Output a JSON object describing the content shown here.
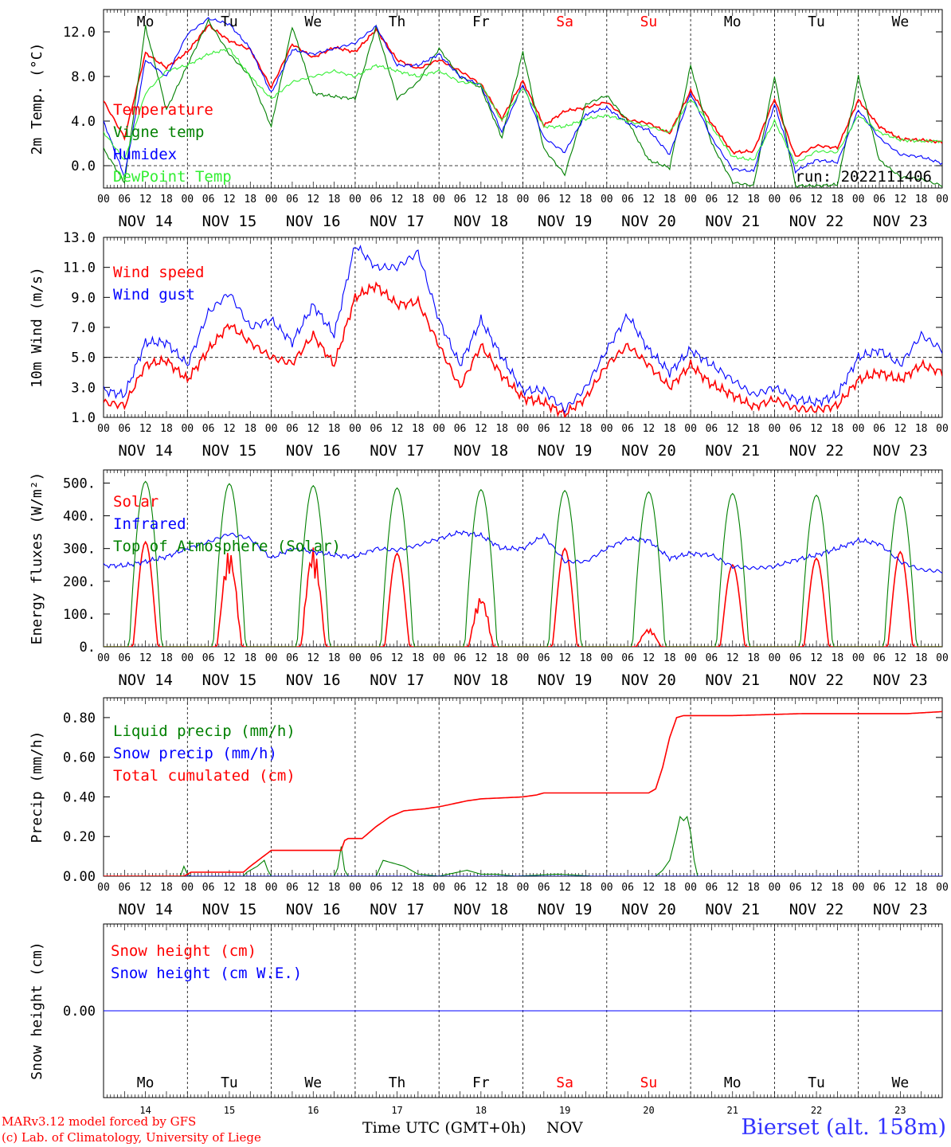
{
  "meta": {
    "run_label": "run: 2022111406",
    "credit_model": "MARv3.12 model forced by GFS",
    "credit_lab": "(c) Lab. of Climatology, University of Liege",
    "station": "Bierset (alt. 158m)",
    "xlabel": "Time UTC (GMT+0h)",
    "month": "NOV",
    "colors": {
      "red": "#ff0000",
      "green": "#008000",
      "blue": "#0000ff",
      "light_green": "#33ee33",
      "purple": "#800080"
    }
  },
  "days": [
    {
      "dow": "Mo",
      "date": "NOV 14",
      "num": "14",
      "weekend": false
    },
    {
      "dow": "Tu",
      "date": "NOV 15",
      "num": "15",
      "weekend": false
    },
    {
      "dow": "We",
      "date": "NOV 16",
      "num": "16",
      "weekend": false
    },
    {
      "dow": "Th",
      "date": "NOV 17",
      "num": "17",
      "weekend": false
    },
    {
      "dow": "Fr",
      "date": "NOV 18",
      "num": "18",
      "weekend": false
    },
    {
      "dow": "Sa",
      "date": "NOV 19",
      "num": "19",
      "weekend": true
    },
    {
      "dow": "Su",
      "date": "NOV 20",
      "num": "20",
      "weekend": true
    },
    {
      "dow": "Mo",
      "date": "NOV 21",
      "num": "21",
      "weekend": false
    },
    {
      "dow": "Tu",
      "date": "NOV 22",
      "num": "22",
      "weekend": false
    },
    {
      "dow": "We",
      "date": "NOV 23",
      "num": "23",
      "weekend": false
    }
  ],
  "hour_ticks": [
    "00",
    "06",
    "12",
    "18"
  ],
  "chart_data": [
    {
      "type": "line",
      "ylabel": "2m Temp. (°C)",
      "ylim": [
        -2.0,
        14.0
      ],
      "yticks": [
        0.0,
        4.0,
        8.0,
        12.0
      ],
      "ytick_labels": [
        "0.0",
        "4.0",
        "8.0",
        "12.0"
      ],
      "ref_line": 0.0,
      "x_unit": "hours since NOV 14 00 UTC",
      "series": [
        {
          "name": "Temperature",
          "color": "#ff0000",
          "x": [
            0,
            6,
            12,
            18,
            24,
            30,
            36,
            42,
            48,
            54,
            60,
            66,
            72,
            78,
            84,
            90,
            96,
            102,
            108,
            114,
            120,
            126,
            132,
            138,
            144,
            150,
            156,
            162,
            168,
            174,
            180,
            186,
            192,
            198,
            204,
            210,
            216,
            222,
            228,
            234,
            240
          ],
          "y": [
            5.8,
            2.5,
            10.1,
            8.8,
            10.2,
            12.6,
            11.2,
            10.4,
            7.0,
            10.9,
            9.7,
            10.6,
            10.2,
            12.2,
            9.5,
            8.7,
            9.5,
            8.5,
            7.3,
            4.2,
            7.6,
            3.6,
            4.9,
            5.2,
            5.7,
            4.1,
            3.8,
            2.9,
            6.7,
            3.8,
            1.2,
            1.3,
            6.0,
            0.8,
            1.8,
            1.6,
            5.9,
            3.5,
            2.4,
            2.3,
            2.1
          ]
        },
        {
          "name": "Vigne temp",
          "color": "#008000",
          "x": [
            0,
            6,
            12,
            18,
            24,
            30,
            36,
            42,
            48,
            54,
            60,
            66,
            72,
            78,
            84,
            90,
            96,
            102,
            108,
            114,
            120,
            126,
            132,
            138,
            144,
            150,
            156,
            162,
            168,
            174,
            180,
            186,
            192,
            198,
            204,
            210,
            216,
            222,
            228,
            234,
            240
          ],
          "y": [
            1.5,
            -1.5,
            12.5,
            5.0,
            9.0,
            13.0,
            10.0,
            8.0,
            3.5,
            12.5,
            6.5,
            6.2,
            6.0,
            12.5,
            6.0,
            7.5,
            10.5,
            8.0,
            7.0,
            2.5,
            10.2,
            1.5,
            -0.8,
            5.5,
            6.3,
            4.0,
            0.5,
            -0.2,
            9.0,
            2.0,
            -1.5,
            -1.8,
            8.0,
            -1.8,
            -1.8,
            -1.7,
            8.0,
            0.5,
            -1.0,
            -1.2,
            -1.8
          ]
        },
        {
          "name": "Humidex",
          "color": "#0000ff",
          "x": [
            0,
            6,
            12,
            18,
            24,
            30,
            36,
            42,
            48,
            54,
            60,
            66,
            72,
            78,
            84,
            90,
            96,
            102,
            108,
            114,
            120,
            126,
            132,
            138,
            144,
            150,
            156,
            162,
            168,
            174,
            180,
            186,
            192,
            198,
            204,
            210,
            216,
            222,
            228,
            234,
            240
          ],
          "y": [
            4.0,
            -1.0,
            9.5,
            8.0,
            11.8,
            13.2,
            12.7,
            10.5,
            6.5,
            10.4,
            10.0,
            10.5,
            11.0,
            12.5,
            9.0,
            9.0,
            10.0,
            8.0,
            7.2,
            3.0,
            7.3,
            2.5,
            1.2,
            4.6,
            5.2,
            3.8,
            3.2,
            1.0,
            6.5,
            2.5,
            -0.3,
            -0.5,
            5.5,
            -0.5,
            0.5,
            0.3,
            5.0,
            2.5,
            1.0,
            0.8,
            0.2
          ]
        },
        {
          "name": "DewPoint Temp",
          "color": "#33ee33",
          "x": [
            0,
            6,
            12,
            18,
            24,
            30,
            36,
            42,
            48,
            54,
            60,
            66,
            72,
            78,
            84,
            90,
            96,
            102,
            108,
            114,
            120,
            126,
            132,
            138,
            144,
            150,
            156,
            162,
            168,
            174,
            180,
            186,
            192,
            198,
            204,
            210,
            216,
            222,
            228,
            234,
            240
          ],
          "y": [
            3.0,
            0.5,
            6.5,
            8.5,
            9.0,
            10.0,
            10.5,
            8.0,
            6.0,
            7.5,
            8.0,
            8.5,
            8.0,
            9.0,
            8.5,
            8.0,
            8.5,
            7.5,
            7.3,
            4.0,
            7.0,
            3.5,
            3.5,
            4.2,
            4.5,
            4.0,
            3.5,
            3.0,
            6.0,
            3.5,
            0.8,
            0.5,
            4.0,
            0.2,
            1.3,
            1.2,
            4.5,
            3.0,
            2.3,
            2.2,
            2.2
          ]
        }
      ]
    },
    {
      "type": "line",
      "ylabel": "10m Wind (m/s)",
      "ylim": [
        1.0,
        13.0
      ],
      "yticks": [
        1.0,
        3.0,
        5.0,
        7.0,
        9.0,
        11.0,
        13.0
      ],
      "ytick_labels": [
        "1.0",
        "3.0",
        "5.0",
        "7.0",
        "9.0",
        "11.0",
        "13.0"
      ],
      "ref_line": 5.0,
      "x_unit": "hours since NOV 14 00 UTC",
      "series": [
        {
          "name": "Wind speed",
          "color": "#ff0000",
          "x": [
            0,
            6,
            12,
            18,
            24,
            30,
            36,
            42,
            48,
            54,
            60,
            66,
            72,
            78,
            84,
            90,
            96,
            102,
            108,
            114,
            120,
            126,
            132,
            138,
            144,
            150,
            156,
            162,
            168,
            174,
            180,
            186,
            192,
            198,
            204,
            210,
            216,
            222,
            228,
            234,
            240
          ],
          "y": [
            2.0,
            1.8,
            4.5,
            4.8,
            3.5,
            5.5,
            7.2,
            6.0,
            5.0,
            4.6,
            6.5,
            4.5,
            9.0,
            9.8,
            8.5,
            8.7,
            5.8,
            3.0,
            5.8,
            3.8,
            2.3,
            2.0,
            1.2,
            2.3,
            4.5,
            5.8,
            4.5,
            3.0,
            4.5,
            3.2,
            2.5,
            1.7,
            2.2,
            1.6,
            1.5,
            1.8,
            3.5,
            4.0,
            3.5,
            4.5,
            4.0
          ]
        },
        {
          "name": "Wind gust",
          "color": "#0000ff",
          "x": [
            0,
            6,
            12,
            18,
            24,
            30,
            36,
            42,
            48,
            54,
            60,
            66,
            72,
            78,
            84,
            90,
            96,
            102,
            108,
            114,
            120,
            126,
            132,
            138,
            144,
            150,
            156,
            162,
            168,
            174,
            180,
            186,
            192,
            198,
            204,
            210,
            216,
            222,
            228,
            234,
            240
          ],
          "y": [
            2.8,
            2.5,
            6.0,
            6.0,
            4.5,
            8.0,
            9.3,
            7.0,
            7.5,
            6.0,
            8.5,
            6.5,
            12.5,
            11.0,
            11.0,
            12.0,
            7.5,
            4.5,
            7.5,
            5.0,
            2.8,
            2.8,
            1.5,
            3.0,
            5.5,
            7.8,
            5.5,
            4.0,
            5.5,
            4.5,
            3.5,
            2.5,
            3.0,
            2.2,
            2.0,
            2.5,
            5.0,
            5.5,
            4.5,
            6.5,
            5.5
          ]
        }
      ]
    },
    {
      "type": "line",
      "ylabel": "Energy fluxes (W/m²)",
      "ylim": [
        0,
        540
      ],
      "yticks": [
        0,
        100,
        200,
        300,
        400,
        500
      ],
      "ytick_labels": [
        "0.",
        "100.",
        "200.",
        "300.",
        "400.",
        "500."
      ],
      "x_unit": "hours since NOV 14 00 UTC",
      "series": [
        {
          "name": "Solar",
          "color": "#ff0000",
          "daily_peak": [
            320,
            295,
            305,
            285,
            155,
            300,
            55,
            250,
            270,
            290
          ]
        },
        {
          "name": "Infrared",
          "color": "#0000ff",
          "x": [
            0,
            6,
            12,
            18,
            24,
            30,
            36,
            42,
            48,
            54,
            60,
            66,
            72,
            78,
            84,
            90,
            96,
            102,
            108,
            114,
            120,
            126,
            132,
            138,
            144,
            150,
            156,
            162,
            168,
            174,
            180,
            186,
            192,
            198,
            204,
            210,
            216,
            222,
            228,
            234,
            240
          ],
          "y": [
            248,
            248,
            260,
            275,
            300,
            320,
            345,
            330,
            270,
            300,
            290,
            280,
            275,
            300,
            295,
            310,
            330,
            350,
            340,
            300,
            300,
            340,
            260,
            260,
            300,
            330,
            325,
            270,
            285,
            280,
            245,
            240,
            245,
            265,
            280,
            300,
            325,
            315,
            260,
            235,
            230
          ]
        },
        {
          "name": "Top of Atmosphere (Solar)",
          "color": "#008000",
          "daily_peak": [
            505,
            498,
            492,
            485,
            480,
            477,
            473,
            468,
            463,
            458
          ]
        }
      ]
    },
    {
      "type": "line",
      "ylabel": "Precip (mm/h)",
      "ylim": [
        0,
        0.9
      ],
      "yticks": [
        0.0,
        0.2,
        0.4,
        0.6,
        0.8
      ],
      "ytick_labels": [
        "0.00",
        "0.20",
        "0.40",
        "0.60",
        "0.80"
      ],
      "x_unit": "hours since NOV 14 00 UTC",
      "series": [
        {
          "name": "Liquid precip (mm/h)",
          "color": "#008000",
          "x": [
            0,
            22,
            23,
            24,
            25,
            40,
            41,
            42,
            44,
            46,
            47,
            48,
            66,
            67,
            68,
            69,
            70,
            78,
            80,
            82,
            86,
            88,
            90,
            96,
            104,
            106,
            108,
            112,
            118,
            130,
            140,
            158,
            160,
            162,
            164,
            165,
            166,
            167,
            168,
            169,
            170,
            240
          ],
          "y": [
            0,
            0,
            0.05,
            0.01,
            0,
            0,
            0.02,
            0.03,
            0.05,
            0.08,
            0.03,
            0,
            0,
            0.04,
            0.15,
            0.03,
            0,
            0,
            0.08,
            0.07,
            0.05,
            0.03,
            0.01,
            0,
            0.03,
            0.02,
            0.01,
            0.01,
            0,
            0.01,
            0,
            0,
            0.03,
            0.08,
            0.22,
            0.3,
            0.28,
            0.3,
            0.22,
            0.08,
            0,
            0
          ]
        },
        {
          "name": "Snow precip (mm/h)",
          "color": "#0000ff",
          "x": [
            0,
            240
          ],
          "y": [
            0,
            0
          ]
        },
        {
          "name": "Total cumulated (cm)",
          "color": "#ff0000",
          "x": [
            0,
            23,
            25,
            40,
            42,
            48,
            68,
            69,
            70,
            74,
            78,
            82,
            86,
            92,
            96,
            104,
            106,
            108,
            120,
            124,
            126,
            130,
            156,
            158,
            160,
            162,
            164,
            166,
            180,
            200,
            230,
            240
          ],
          "y": [
            0,
            0,
            0.02,
            0.02,
            0.05,
            0.13,
            0.13,
            0.18,
            0.19,
            0.19,
            0.25,
            0.3,
            0.33,
            0.34,
            0.35,
            0.38,
            0.385,
            0.39,
            0.4,
            0.41,
            0.42,
            0.42,
            0.42,
            0.44,
            0.55,
            0.7,
            0.8,
            0.81,
            0.81,
            0.82,
            0.82,
            0.83
          ]
        }
      ]
    },
    {
      "type": "line",
      "ylabel": "Snow height (cm)",
      "ylim": [
        -1,
        1
      ],
      "yticks": [
        0.0
      ],
      "ytick_labels": [
        "0.00"
      ],
      "x_unit": "hours since NOV 14 00 UTC",
      "series": [
        {
          "name": "Snow height (cm)",
          "color": "#ff0000",
          "x": [
            0,
            240
          ],
          "y": [
            0,
            0
          ]
        },
        {
          "name": "Snow height (cm W.E.)",
          "color": "#0000ff",
          "x": [
            0,
            240
          ],
          "y": [
            0,
            0
          ]
        }
      ]
    }
  ]
}
